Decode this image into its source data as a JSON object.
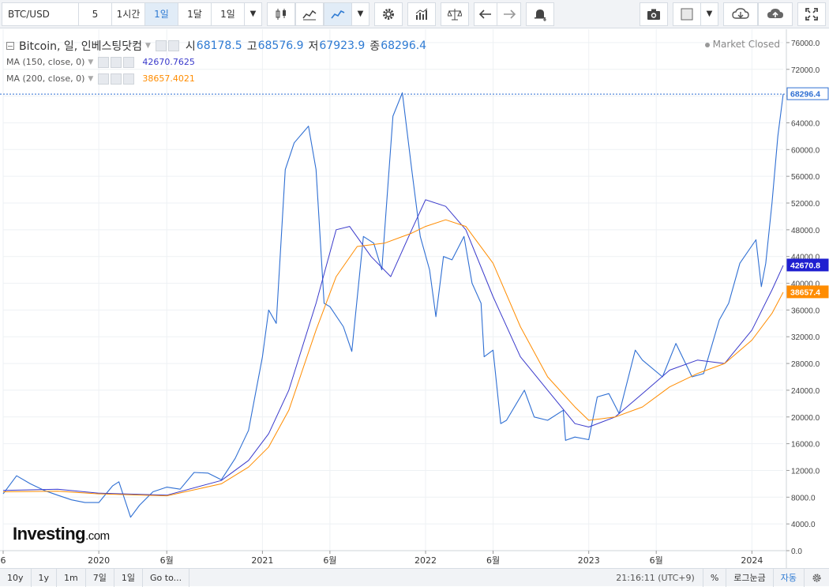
{
  "toolbar": {
    "symbol": "BTC/USD",
    "intervals": [
      "5",
      "1시간",
      "1일",
      "1달",
      "1일"
    ],
    "active_interval_index": 2,
    "icons": [
      "candles-icon",
      "area-chart-icon",
      "line-chart-icon",
      "settings-gear-icon",
      "bars-indicator-icon",
      "compare-scales-icon",
      "undo-icon",
      "redo-icon",
      "alert-plus-icon",
      "camera-icon",
      "template-box-icon",
      "cloud-download-icon",
      "cloud-upload-icon",
      "fullscreen-icon"
    ]
  },
  "legend": {
    "main": {
      "name": "Bitcoin, 일, 인베스팅닷컴",
      "open_label": "시",
      "open": "68178.5",
      "high_label": "고",
      "high": "68576.9",
      "low_label": "저",
      "low": "67923.9",
      "close_label": "종",
      "close": "68296.4"
    },
    "ma150": {
      "label": "MA (150, close, 0)",
      "value": "42670.7625"
    },
    "ma200": {
      "label": "MA (200, close, 0)",
      "value": "38657.4021"
    }
  },
  "status": {
    "market": "Market Closed"
  },
  "watermark": {
    "brand": "Investing",
    "suffix": ".com"
  },
  "colors": {
    "price": "#2f6fd3",
    "ma150": "#3a3acb",
    "ma200": "#ff8c00",
    "grid": "#eef1f4"
  },
  "price_tags": {
    "last": "68296.4",
    "ma150": "42670.8",
    "ma200": "38657.4"
  },
  "chart_data": {
    "type": "line",
    "title": "Bitcoin, 일, 인베스팅닷컴",
    "xlabel": "",
    "ylabel": "",
    "ylim": [
      0,
      78000
    ],
    "y_ticks": [
      0,
      4000,
      8000,
      12000,
      16000,
      20000,
      24000,
      28000,
      32000,
      36000,
      40000,
      44000,
      48000,
      52000,
      56000,
      60000,
      64000,
      68000,
      72000,
      76000
    ],
    "y_tick_labels": [
      "0.0",
      "4000.0",
      "8000.0",
      "12000.0",
      "16000.0",
      "20000.0",
      "24000.0",
      "28000.0",
      "32000.0",
      "36000.0",
      "40000.0",
      "44000.0",
      "48000.0",
      "52000.0",
      "56000.0",
      "60000.0",
      "64000.0",
      "68000.0",
      "72000.0",
      "76000.0"
    ],
    "x_range": [
      "2019-06-01",
      "2024-03-11"
    ],
    "x_ticks": [
      {
        "date": "2019-06-01",
        "label": "6"
      },
      {
        "date": "2020-01-01",
        "label": "2020"
      },
      {
        "date": "2020-06-01",
        "label": "6월"
      },
      {
        "date": "2021-01-01",
        "label": "2021"
      },
      {
        "date": "2021-06-01",
        "label": "6월"
      },
      {
        "date": "2022-01-01",
        "label": "2022"
      },
      {
        "date": "2022-06-01",
        "label": "6월"
      },
      {
        "date": "2023-01-01",
        "label": "2023"
      },
      {
        "date": "2023-06-01",
        "label": "6월"
      },
      {
        "date": "2024-01-01",
        "label": "2024"
      }
    ],
    "series": [
      {
        "name": "Bitcoin",
        "x": [
          "2019-06-01",
          "2019-07-01",
          "2019-08-01",
          "2019-09-01",
          "2019-10-01",
          "2019-11-01",
          "2019-12-01",
          "2020-01-01",
          "2020-02-01",
          "2020-02-15",
          "2020-03-12",
          "2020-04-01",
          "2020-05-01",
          "2020-06-01",
          "2020-07-01",
          "2020-08-01",
          "2020-09-01",
          "2020-10-01",
          "2020-11-01",
          "2020-12-01",
          "2021-01-01",
          "2021-01-15",
          "2021-02-01",
          "2021-02-21",
          "2021-03-13",
          "2021-04-14",
          "2021-05-01",
          "2021-05-19",
          "2021-06-01",
          "2021-07-01",
          "2021-07-20",
          "2021-08-15",
          "2021-09-07",
          "2021-09-25",
          "2021-10-20",
          "2021-11-10",
          "2021-12-01",
          "2021-12-20",
          "2022-01-10",
          "2022-01-24",
          "2022-02-10",
          "2022-03-01",
          "2022-03-28",
          "2022-04-15",
          "2022-05-05",
          "2022-05-12",
          "2022-06-01",
          "2022-06-18",
          "2022-07-01",
          "2022-08-10",
          "2022-09-01",
          "2022-10-01",
          "2022-11-05",
          "2022-11-10",
          "2022-12-01",
          "2023-01-01",
          "2023-01-20",
          "2023-02-15",
          "2023-03-10",
          "2023-04-15",
          "2023-05-01",
          "2023-06-15",
          "2023-07-15",
          "2023-08-20",
          "2023-09-15",
          "2023-10-20",
          "2023-11-10",
          "2023-12-05",
          "2024-01-10",
          "2024-01-22",
          "2024-02-01",
          "2024-02-15",
          "2024-02-28",
          "2024-03-11"
        ],
        "y": [
          8500,
          11200,
          10000,
          9000,
          8300,
          7600,
          7200,
          7200,
          9700,
          10300,
          5000,
          6800,
          8800,
          9500,
          9200,
          11700,
          11600,
          10600,
          13800,
          18000,
          29000,
          36000,
          34000,
          57000,
          61000,
          63500,
          57000,
          37000,
          36500,
          33500,
          29800,
          47000,
          46000,
          42000,
          65000,
          68500,
          57000,
          47000,
          42000,
          35000,
          44000,
          43500,
          47000,
          40000,
          37000,
          29000,
          30000,
          19000,
          19500,
          24000,
          20000,
          19500,
          21000,
          16500,
          17000,
          16600,
          23000,
          23500,
          20500,
          30000,
          28500,
          26000,
          31000,
          26000,
          26500,
          34500,
          37000,
          43000,
          46500,
          39500,
          43000,
          52000,
          62000,
          68296.4
        ]
      },
      {
        "name": "MA (150, close, 0)",
        "x": [
          "2019-06-01",
          "2019-10-01",
          "2020-01-01",
          "2020-06-01",
          "2020-10-01",
          "2020-12-01",
          "2021-01-15",
          "2021-03-01",
          "2021-05-01",
          "2021-06-15",
          "2021-07-15",
          "2021-09-01",
          "2021-10-15",
          "2021-12-01",
          "2022-01-01",
          "2022-02-15",
          "2022-04-01",
          "2022-06-01",
          "2022-08-01",
          "2022-10-01",
          "2022-12-01",
          "2023-01-01",
          "2023-03-01",
          "2023-05-01",
          "2023-07-01",
          "2023-09-01",
          "2023-11-01",
          "2024-01-01",
          "2024-02-15",
          "2024-03-11"
        ],
        "y": [
          9000,
          9200,
          8600,
          8300,
          10500,
          13500,
          17500,
          24000,
          37000,
          48000,
          48500,
          44000,
          41000,
          48000,
          52500,
          51500,
          48000,
          38000,
          29000,
          24000,
          19000,
          18500,
          20000,
          23500,
          27000,
          28500,
          28000,
          33000,
          39000,
          42670.8
        ]
      },
      {
        "name": "MA (200, close, 0)",
        "x": [
          "2019-06-01",
          "2019-10-01",
          "2020-01-01",
          "2020-06-01",
          "2020-10-01",
          "2020-12-01",
          "2021-01-15",
          "2021-03-01",
          "2021-05-01",
          "2021-06-15",
          "2021-08-01",
          "2021-10-01",
          "2021-12-01",
          "2022-01-01",
          "2022-02-15",
          "2022-04-01",
          "2022-06-01",
          "2022-08-01",
          "2022-10-01",
          "2022-12-01",
          "2023-01-01",
          "2023-03-01",
          "2023-05-01",
          "2023-07-01",
          "2023-09-01",
          "2023-11-01",
          "2024-01-01",
          "2024-02-15",
          "2024-03-11"
        ],
        "y": [
          8800,
          8900,
          8500,
          8200,
          10000,
          12500,
          15500,
          21000,
          33000,
          41000,
          45500,
          46000,
          47500,
          48500,
          49500,
          48500,
          43000,
          33500,
          26000,
          21500,
          19500,
          20000,
          21500,
          24500,
          26500,
          28000,
          31500,
          35500,
          38657.4
        ]
      }
    ]
  },
  "bottombar": {
    "ranges": [
      "10y",
      "1y",
      "1m",
      "7일",
      "1일",
      "Go to..."
    ],
    "time": "21:16:11 (UTC+9)",
    "percent": "%",
    "log": "로그눈금",
    "auto": "자동"
  }
}
